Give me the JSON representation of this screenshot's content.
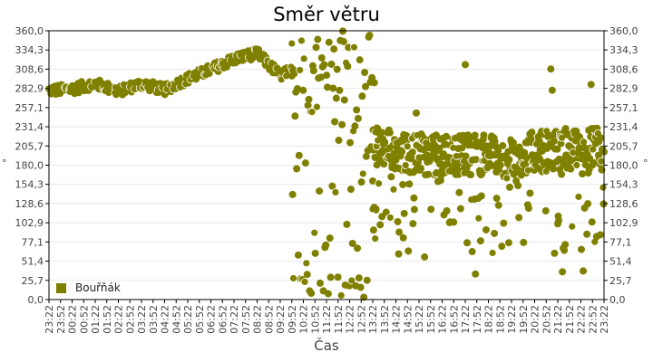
{
  "chart_data": {
    "type": "scatter",
    "title": "Směr větru",
    "xlabel": "Čas",
    "ylabel": "°",
    "ylabel_right": "°",
    "ylim": [
      0,
      360
    ],
    "yticks": [
      "0,0",
      "25,7",
      "51,4",
      "77,1",
      "102,9",
      "128,6",
      "154,3",
      "180,0",
      "205,7",
      "231,4",
      "257,1",
      "282,9",
      "308,6",
      "334,3",
      "360,0"
    ],
    "xticks": [
      "23:22",
      "23:52",
      "00:22",
      "00:52",
      "01:22",
      "01:52",
      "02:22",
      "02:52",
      "03:22",
      "03:52",
      "04:22",
      "04:52",
      "05:22",
      "05:52",
      "06:22",
      "06:52",
      "07:22",
      "07:52",
      "08:22",
      "08:52",
      "09:22",
      "09:52",
      "10:22",
      "10:52",
      "11:22",
      "11:52",
      "12:22",
      "12:52",
      "13:22",
      "13:52",
      "14:22",
      "14:52",
      "15:22",
      "15:52",
      "16:22",
      "16:52",
      "17:22",
      "17:52",
      "18:22",
      "18:52",
      "19:22",
      "19:52",
      "20:22",
      "20:52",
      "21:22",
      "21:52",
      "22:22",
      "22:52",
      "23:22"
    ],
    "grid": true,
    "legend_position": "bottom-left inside",
    "series": [
      {
        "name": "Bouřňák",
        "color": "#808000",
        "trend_hours": [
          0,
          1,
          2,
          3,
          4,
          5,
          6,
          7,
          8,
          9,
          10,
          11,
          12,
          13,
          14,
          15,
          16,
          17,
          18,
          19,
          20,
          21,
          22,
          23,
          24
        ],
        "trend_values": [
          280,
          282,
          289,
          279,
          289,
          281,
          296,
          308,
          322,
          330,
          300,
          313,
          326,
          338,
          205,
          200,
          195,
          193,
          195,
          193,
          190,
          198,
          200,
          200,
          205
        ],
        "scatter_note": "From ~10:00 to ~14:00 values scatter widely between 0 and 360; after 14:00 cluster around 180–230 with outliers from 0 to 340"
      }
    ]
  },
  "legend": {
    "label": "Bouřňák",
    "color": "#808000"
  },
  "colors": {
    "series": "#808000",
    "grid": "#e8e8e8",
    "axis": "#000000",
    "label": "#444444"
  }
}
